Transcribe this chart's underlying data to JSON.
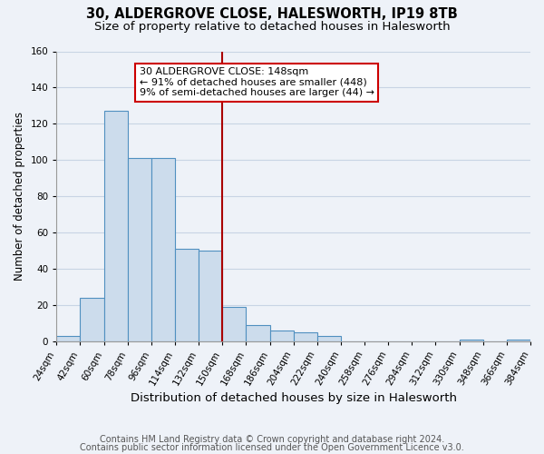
{
  "title": "30, ALDERGROVE CLOSE, HALESWORTH, IP19 8TB",
  "subtitle": "Size of property relative to detached houses in Halesworth",
  "xlabel": "Distribution of detached houses by size in Halesworth",
  "ylabel": "Number of detached properties",
  "bin_edges": [
    24,
    42,
    60,
    78,
    96,
    114,
    132,
    150,
    168,
    186,
    204,
    222,
    240,
    258,
    276,
    294,
    312,
    330,
    348,
    366,
    384
  ],
  "bar_heights": [
    3,
    24,
    127,
    101,
    101,
    51,
    50,
    19,
    9,
    6,
    5,
    3,
    0,
    0,
    0,
    0,
    0,
    1,
    0,
    1
  ],
  "bar_color": "#ccdcec",
  "bar_edgecolor": "#5090c0",
  "property_line_x": 150,
  "property_line_color": "#aa0000",
  "annotation_text": "30 ALDERGROVE CLOSE: 148sqm\n← 91% of detached houses are smaller (448)\n9% of semi-detached houses are larger (44) →",
  "annotation_box_edgecolor": "#cc0000",
  "annotation_box_facecolor": "#ffffff",
  "ylim": [
    0,
    160
  ],
  "yticks": [
    0,
    20,
    40,
    60,
    80,
    100,
    120,
    140,
    160
  ],
  "xtick_labels": [
    "24sqm",
    "42sqm",
    "60sqm",
    "78sqm",
    "96sqm",
    "114sqm",
    "132sqm",
    "150sqm",
    "168sqm",
    "186sqm",
    "204sqm",
    "222sqm",
    "240sqm",
    "258sqm",
    "276sqm",
    "294sqm",
    "312sqm",
    "330sqm",
    "348sqm",
    "366sqm",
    "384sqm"
  ],
  "grid_color": "#c8d4e4",
  "background_color": "#eef2f8",
  "footer_line1": "Contains HM Land Registry data © Crown copyright and database right 2024.",
  "footer_line2": "Contains public sector information licensed under the Open Government Licence v3.0.",
  "title_fontsize": 10.5,
  "subtitle_fontsize": 9.5,
  "xlabel_fontsize": 9.5,
  "ylabel_fontsize": 8.5,
  "tick_fontsize": 7.5,
  "footer_fontsize": 7,
  "annotation_fontsize": 8
}
